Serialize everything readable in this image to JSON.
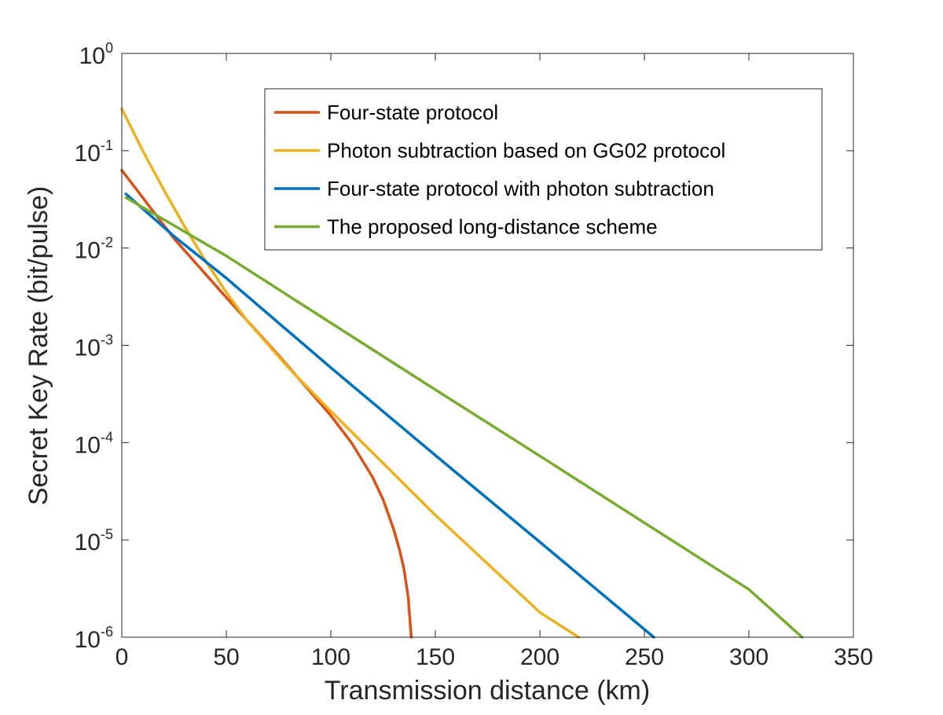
{
  "chart_data": {
    "type": "line",
    "title": "",
    "xlabel": "Transmission distance (km)",
    "ylabel": "Secret Key Rate (bit/pulse)",
    "xlim": [
      0,
      350
    ],
    "ylim": [
      1e-06,
      1
    ],
    "yscale": "log",
    "grid": false,
    "legend_position": "top-right",
    "x_ticks": [
      "0",
      "50",
      "100",
      "150",
      "200",
      "250",
      "300",
      "350"
    ],
    "y_ticks": [
      {
        "base": "10",
        "exp": "0"
      },
      {
        "base": "10",
        "exp": "-1"
      },
      {
        "base": "10",
        "exp": "-2"
      },
      {
        "base": "10",
        "exp": "-3"
      },
      {
        "base": "10",
        "exp": "-4"
      },
      {
        "base": "10",
        "exp": "-5"
      },
      {
        "base": "10",
        "exp": "-6"
      }
    ],
    "series": [
      {
        "name": "Four-state protocol",
        "color": "#D95319",
        "x": [
          0,
          25,
          50,
          75,
          100,
          110,
          120,
          125,
          130,
          133,
          135,
          137,
          138.5
        ],
        "y": [
          0.063,
          0.0125,
          0.0031,
          0.00079,
          0.00019,
          9.9e-05,
          4.4e-05,
          2.6e-05,
          1.3e-05,
          7.7e-06,
          5e-06,
          2.6e-06,
          1e-06
        ]
      },
      {
        "name": "Photon subtraction based on GG02 protocol",
        "color": "#EDB120",
        "x": [
          0,
          10,
          20,
          30,
          40,
          50,
          60,
          80,
          100,
          150,
          200,
          218.5
        ],
        "y": [
          0.27,
          0.1,
          0.04,
          0.0167,
          0.0074,
          0.0035,
          0.00178,
          0.00058,
          0.00021,
          1.8e-05,
          1.8e-06,
          1e-06
        ]
      },
      {
        "name": "Four-state protocol with photon subtraction",
        "color": "#0072BD",
        "x": [
          2,
          25,
          50,
          75,
          100,
          150,
          200,
          254.5
        ],
        "y": [
          0.036,
          0.0132,
          0.0049,
          0.0017,
          0.00059,
          7.4e-05,
          9.5e-06,
          1e-06
        ]
      },
      {
        "name": "The proposed long-distance scheme",
        "color": "#77AC30",
        "x": [
          2,
          50,
          100,
          150,
          200,
          250,
          300,
          325.5
        ],
        "y": [
          0.033,
          0.0083,
          0.0017,
          0.00035,
          7.3e-05,
          1.5e-05,
          3.1e-06,
          1e-06
        ]
      }
    ]
  }
}
